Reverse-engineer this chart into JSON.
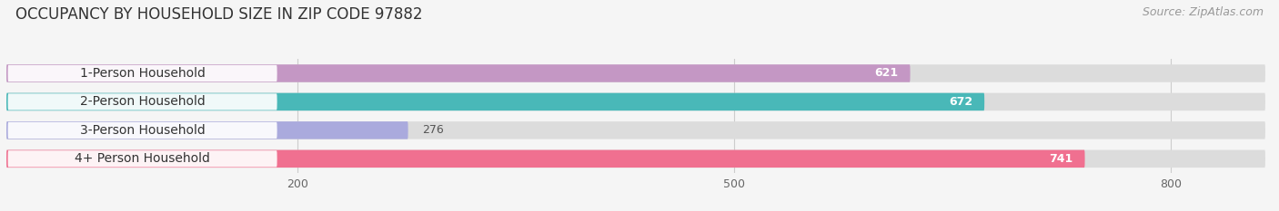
{
  "title": "OCCUPANCY BY HOUSEHOLD SIZE IN ZIP CODE 97882",
  "source": "Source: ZipAtlas.com",
  "categories": [
    "1-Person Household",
    "2-Person Household",
    "3-Person Household",
    "4+ Person Household"
  ],
  "values": [
    621,
    672,
    276,
    741
  ],
  "colors": [
    "#c497c4",
    "#49b8b8",
    "#aaaadd",
    "#f07090"
  ],
  "bar_bg_color": "#dcdcdc",
  "fig_bg_color": "#f5f5f5",
  "xlim_max": 870,
  "xticks": [
    200,
    500,
    800
  ],
  "title_fontsize": 12,
  "source_fontsize": 9,
  "label_fontsize": 10,
  "value_fontsize": 9,
  "figsize": [
    14.06,
    2.33
  ],
  "dpi": 100
}
